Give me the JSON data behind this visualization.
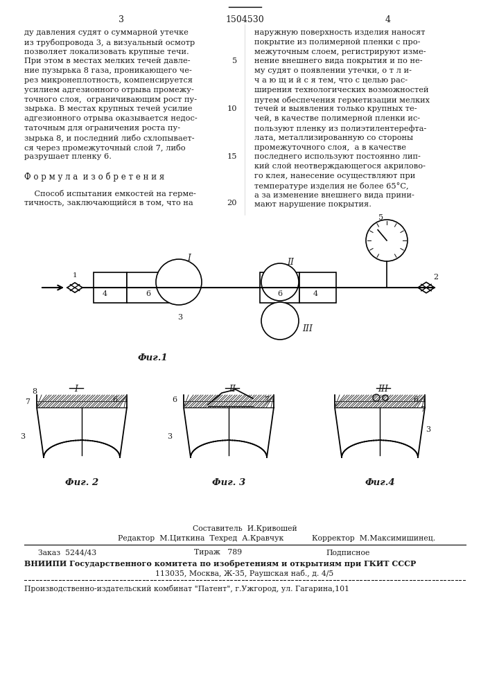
{
  "page_number_left": "3",
  "patent_number": "1504530",
  "page_number_right": "4",
  "left_col_lines": [
    "ду давления судят о суммарной утечке",
    "из трубопровода 3, а визуальный осмотр",
    "позволяет локализовать крупные течи.",
    "При этом в местах мелких течей давле-",
    "ние пузырька 8 газа, проникающего че-",
    "рез микронеплотность, компенсируется",
    "усилием адгезионного отрыва промежу-",
    "точного слоя,  ограничивающим рост пу-",
    "зырька. В местах крупных течей усилие",
    "адгезионного отрыва оказывается недос-",
    "таточным для ограничения роста пу-",
    "зырька 8, и последний либо схлопывает-",
    "ся через промежуточный слой 7, либо",
    "разрушает пленку 6."
  ],
  "left_col_linenums": [
    null,
    null,
    null,
    5,
    null,
    null,
    null,
    null,
    10,
    null,
    null,
    null,
    null,
    15
  ],
  "formula_heading": "Ф о р м у л а  и з о б р е т е н и я",
  "formula_text1": "    Способ испытания емкостей на герме-",
  "formula_text2": "тичность, заключающийся в том, что на",
  "formula_linenum": 20,
  "right_col_lines": [
    "наружную поверхность изделия наносят",
    "покрытие из полимерной пленки с про-",
    "межуточным слоем, регистрируют изме-",
    "нение внешнего вида покрытия и по не-",
    "му судят о появлении утечки, о т л и-",
    "ч а ю щ и й с я тем, что с целью рас-",
    "ширения технологических возможностей",
    "путем обеспечения герметизации мелких",
    "течей и выявления только крупных те-",
    "чей, в качестве полимерной пленки ис-",
    "пользуют пленку из полиэтилентерефта-",
    "лата, металлизированную со стороны",
    "промежуточного слоя,  а в качестве",
    "последнего используют постоянно лип-",
    "кий слой неотверждающегося акрилово-",
    "го клея, нанесение осуществляют при",
    "температуре изделия не более 65°С,",
    "а за изменение внешнего вида прини-",
    "мают нарушение покрытия."
  ],
  "fig1_caption": "Фиг.1",
  "fig2_caption": "Фиг. 2",
  "fig3_caption": "Фиг. 3",
  "fig4_caption": "Фиг.4",
  "footer_sostavitel": "Составитель  И.Кривошей",
  "footer_redaktor": "Редактор  М.Циткина  Техред  А.Кравчук",
  "footer_korrektor": "Корректор  М.Максимишинец.",
  "footer_order": "Заказ  5244/43",
  "footer_tirazh": "Тираж   789",
  "footer_podpisnoe": "Подписное",
  "footer_vniipи": "ВНИИПИ Государственного комитета по изобретениям и открытиям при ГКИТ СССР",
  "footer_address": "113035, Москва, Ж-35, Раушская наб., д. 4/5",
  "footer_patent": "Производственно-издательский комбинат \"Патент\", г.Ужгород, ул. Гагарина,101",
  "bg_color": "#ffffff",
  "text_color": "#1a1a1a"
}
